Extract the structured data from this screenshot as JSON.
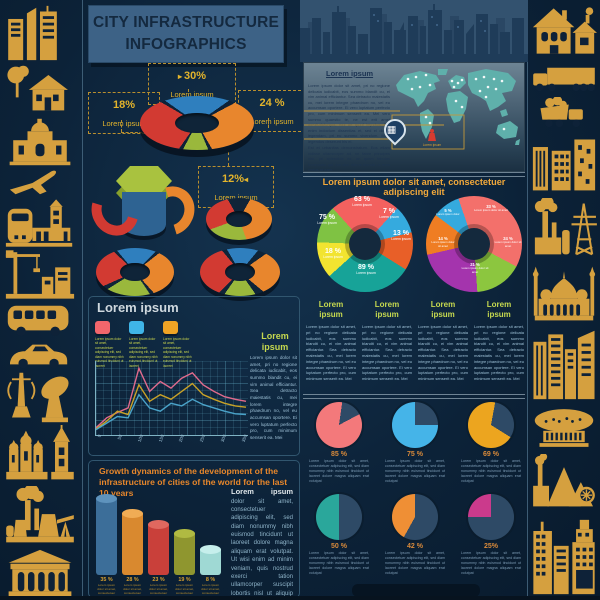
{
  "title": {
    "line1": "CITY INFRASTRUCTURE",
    "line2": "INFOGRAPHICS"
  },
  "colors": {
    "background": "#0c2238",
    "gold_icon": "#d5a03f",
    "title_box": "#3d6286",
    "title_text": "#14293f",
    "accent_yellow": "#e3b42c",
    "accent_orange_heading": "#e8872b",
    "heading_green": "#c6d94f",
    "body_light_blue": "#9dc0d6",
    "map_teal": "#5fb0ab"
  },
  "top_donut": {
    "labels": [
      {
        "pct": "30%",
        "caption": "Lorem ipsum"
      },
      {
        "pct": "18%",
        "caption": "Lorem ipsum"
      },
      {
        "pct": "24 %",
        "caption": "Lorem ipsum"
      },
      {
        "pct": "12%",
        "caption": "Lorem ipsum"
      }
    ]
  },
  "map_panel": {
    "heading": "Lorem ipsum",
    "para1": "Lorem ipsum dolor sit amet, pri no regione delicata iudicabit, eos summo blandit cu, ei vim animal efficiantur. Sea detracto maiestatis cu, mei lorem integre phaedrum no, vel eu accumsan oportere. Ei vero luptatum perfecto pro, cum minimum senserit ea. Mei vero summo quaestio te, ne est erit amet concludaturque, nec an quod impetus. Pro enim indoctum dissentias et, sed ei dicunt legendam, pri eu summo vivendum. Mala legendos deserunt his ei.",
    "para2": "Est et urbanitas demonstratum. Eos etiam vidisse ullamcorper ad, ne fabre principes vim, pri splendide ex, an quem fabulas honestatis qui. Ius dicit ridens blandit ut, eum verius at eam.",
    "person_caption": "Lorem ipsum"
  },
  "pies_section": {
    "heading": "Lorem ipsum dolor sit amet, consectetuer adipiscing elit",
    "pie1_labels": [
      {
        "pct": "63 %",
        "caption": "Lorem ipsum"
      },
      {
        "pct": "7 %",
        "caption": "Lorem ipsum"
      },
      {
        "pct": "13 %",
        "caption": "Lorem ipsum"
      },
      {
        "pct": "89 %",
        "caption": "Lorem ipsum"
      },
      {
        "pct": "18 %",
        "caption": "Lorem ipsum"
      },
      {
        "pct": "75 %",
        "caption": "Lorem ipsum"
      }
    ],
    "pie2_labels": [
      {
        "pct": "33 %",
        "caption": "Lorem ipsum dolor sit amet"
      },
      {
        "pct": "24 %",
        "caption": "Lorem ipsum dolor sit amet"
      },
      {
        "pct": "21 %",
        "caption": "Lorem ipsum dolor sit amet"
      },
      {
        "pct": "14 %",
        "caption": "Lorem ipsum dolor sit amet"
      },
      {
        "pct": "5 %",
        "caption": "Lorem ipsum dolor"
      }
    ]
  },
  "columns": [
    {
      "heading": "Lorem ipsum",
      "body": "Lorem ipsum dolor sit amet, pri no regione delicata iudicabit, eos summo blandit cu, ei vim animal efficiantur. Sea detracto maiestatis cu, mei lorem integre phaedrum no, vel eu accumsan oportere. Ei vero luptatum perfecto pro, cum minimum senserit ea. Mei"
    },
    {
      "heading": "Lorem ipsum",
      "body": "Lorem ipsum dolor sit amet, pri no regione delicata iudicabit, eos summo blandit cu, ei vim animal efficiantur. Sea detracto maiestatis cu, mei lorem integre phaedrum no, vel eu accumsan oportere. Ei vero luptatum perfecto pro, cum minimum senserit ea. Mei"
    },
    {
      "heading": "Lorem ipsum",
      "body": "Lorem ipsum dolor sit amet, pri no regione delicata iudicabit, eos summo blandit cu, ei vim animal efficiantur. Sea detracto maiestatis cu, mei lorem integre phaedrum no, vel eu accumsan oportere. Ei vero luptatum perfecto pro, cum minimum senserit ea. Mei"
    },
    {
      "heading": "Lorem ipsum",
      "body": "Lorem ipsum dolor sit amet, pri no regione delicata iudicabit, eos summo blandit cu, ei vim animal efficiantur. Sea detracto maiestatis cu, mei lorem integre phaedrum no, vel eu accumsan oportere. Ei vero luptatum perfecto pro, cum minimum senserit ea. Mei"
    }
  ],
  "small_pies": {
    "items": [
      {
        "pct": "85 %"
      },
      {
        "pct": "75 %"
      },
      {
        "pct": "69 %"
      },
      {
        "pct": "50 %"
      },
      {
        "pct": "42 %"
      },
      {
        "pct": "25%"
      }
    ],
    "body": "Lorem ipsum dolor sit amet, consectetuer adipiscing elit, sed diam nonummy nibh euismod tincidunt ut laoreet dolore magna aliquam erat volutpat"
  },
  "left_mid": {
    "heading": "Lorem ipsum",
    "legend": [
      {
        "caption": "Lorem ipsum dolor sit amet, consectetuer adipiscing elit, sed diam nonummy nibh euismod tincidunt ut laoreet"
      },
      {
        "caption": "Lorem ipsum dolor sit amet, consectetuer adipiscing elit, sed diam nonummy nibh euismod tincidunt ut laoreet"
      },
      {
        "caption": "Lorem ipsum dolor sit amet, consectetuer adipiscing elit, sed diam nonummy nibh euismod tincidunt ut laoreet"
      }
    ],
    "x_ticks": [
      "0",
      "50",
      "100",
      "150",
      "200",
      "250",
      "300",
      "350"
    ],
    "side_heading": "Lorem ipsum",
    "side_body": "Lorem ipsum dolor sit amet, pri no regione delicata iudicabit, eos summo blandit cu, ei vim animal efficiantur. Sea detracto maiestatis cu, mei lorem integre phaedrum no, vel eu accumsan oportere. Ei vero luptatum perfecto pro, cum minimum senserit ea. Mei"
  },
  "growth": {
    "heading": "Growth dynamics of the development of the infrastructure of cities of the world for the last 10 years",
    "bars": [
      {
        "pct": "35 %",
        "caption": "Lorem ipsum dolor sit amet, consectetuer adipiscing elit"
      },
      {
        "pct": "28 %",
        "caption": "Lorem ipsum dolor sit amet, consectetuer adipiscing elit"
      },
      {
        "pct": "23 %",
        "caption": "Lorem ipsum dolor sit amet, consectetuer adipiscing elit"
      },
      {
        "pct": "19 %",
        "caption": "Lorem ipsum dolor sit amet, consectetuer adipiscing elit"
      },
      {
        "pct": "8 %",
        "caption": "Lorem ipsum dolor sit amet, consectetuer adipiscing elit"
      }
    ],
    "side_heading": "Lorem ipsum",
    "side_body": "dolor sit amet, consectetuer adipiscing elit, sed diam nonummy nibh euismod tincidunt ut laoreet dolore magna aliquam erat volutpat. Ut wisi enim ad minim veniam, quis nostrud exerci tation ullamcorper suscipit lobortis nisl ut aliquip ex ea commodo consequat."
  },
  "icons": {
    "left_sidebar": [
      "skyscrapers-icon",
      "house-tree-icon",
      "theater-icon",
      "airplane-icon",
      "train-station-icon",
      "crane-construction-icon",
      "bus-icon",
      "car-icon",
      "antenna-satellite-dish-icon",
      "cathedral-church-icon",
      "power-plant-oil-pump-icon",
      "museum-icon"
    ],
    "right_sidebar": [
      "houses-icon",
      "truck-icon",
      "dump-truck-icon",
      "apartment-blocks-icon",
      "factory-power-tower-icon",
      "mosque-icon",
      "skyscraper-cluster-icon",
      "saucer-building-icon",
      "pyramids-factory-icon",
      "city-towers-icon"
    ],
    "map": [
      "location-pin-icon",
      "person-icon"
    ]
  },
  "chart_data": [
    {
      "type": "pie",
      "variant": "3d-exploded-donut",
      "title": "",
      "labels": [
        "30%",
        "18%",
        "24 %",
        "12%"
      ],
      "values": [
        30,
        18,
        24,
        12
      ],
      "colors": [
        "#2f7fbe",
        "#d23a32",
        "#e8862d",
        "#9ab83c"
      ],
      "legend_position": "callouts"
    },
    {
      "type": "pie",
      "variant": "donut",
      "labels": [
        "63 %",
        "7 %",
        "13 %",
        "89 %",
        "18 %",
        "75 %"
      ],
      "values": [
        63,
        7,
        13,
        89,
        18,
        75
      ],
      "colors": [
        "#f3615f",
        "#35aade",
        "#e85f28",
        "#17a398",
        "#f2e430",
        "#7fc243"
      ]
    },
    {
      "type": "pie",
      "variant": "donut",
      "labels": [
        "33 %",
        "24 %",
        "21 %",
        "14 %",
        "5 %"
      ],
      "values": [
        33,
        24,
        21,
        14,
        5
      ],
      "colors": [
        "#f3706b",
        "#8cc63f",
        "#a434ad",
        "#ef7d23",
        "#35aade"
      ],
      "note": "segment labels too small to read; values estimated from arc sizes"
    },
    {
      "type": "line",
      "grid": true,
      "xlabel": "",
      "ylabel": "",
      "x": [
        0,
        25,
        50,
        75,
        100,
        125,
        150,
        175,
        200,
        225,
        250,
        275,
        300,
        325,
        350
      ],
      "series": [
        {
          "name": "series-pink",
          "color": "#e06a8c",
          "values": [
            5,
            20,
            28,
            35,
            95,
            60,
            75,
            65,
            80,
            88,
            70,
            60,
            52,
            48,
            45
          ]
        },
        {
          "name": "series-gold",
          "color": "#c9a227",
          "values": [
            3,
            15,
            30,
            25,
            70,
            45,
            55,
            48,
            60,
            72,
            55,
            48,
            42,
            38,
            36
          ]
        },
        {
          "name": "series-blue",
          "color": "#4aa3c9",
          "values": [
            2,
            12,
            22,
            20,
            55,
            35,
            30,
            42,
            38,
            48,
            40,
            35,
            30,
            26,
            25
          ]
        }
      ]
    },
    {
      "type": "bar",
      "variant": "3d-cylinder",
      "labels": [
        "35 %",
        "28 %",
        "23 %",
        "19 %",
        "8 %"
      ],
      "values": [
        35,
        28,
        23,
        19,
        8
      ],
      "colors": [
        "#3c6e99",
        "#d9892f",
        "#c9403a",
        "#8f962f",
        "#9fd9d4"
      ],
      "tops": [
        "#5e93bd",
        "#f0ac55",
        "#e0685f",
        "#b0ba42",
        "#c6efec"
      ]
    },
    {
      "type": "pie",
      "variant": "percent-circles",
      "labels": [
        "85 %",
        "75 %",
        "69 %",
        "50 %",
        "42 %",
        "25%"
      ],
      "values": [
        85,
        75,
        69,
        50,
        42,
        25
      ],
      "colors": [
        "#f3797b",
        "#45b4e8",
        "#eca51f",
        "#2aa79b",
        "#ef8f35",
        "#cb3a8c"
      ],
      "start_angles": [
        62,
        90,
        122,
        180,
        209,
        270
      ],
      "empty_color": "#2e4a66"
    }
  ]
}
